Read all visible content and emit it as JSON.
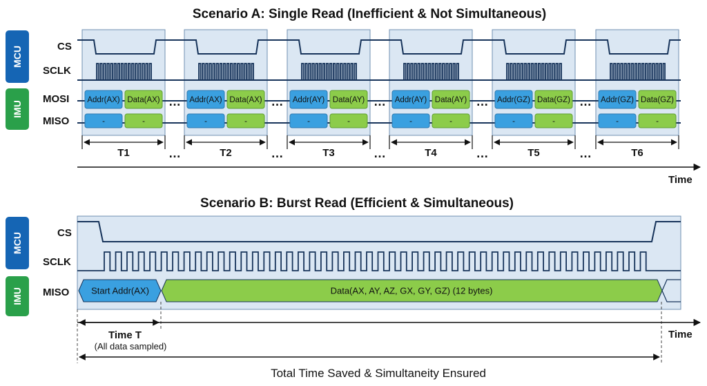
{
  "scenario_a": {
    "title": "Scenario A: Single Read (Inefficient & Not Simultaneous)",
    "side_labels": {
      "mcu": "MCU",
      "imu": "IMU"
    },
    "signals": {
      "cs": "CS",
      "sclk": "SCLK",
      "mosi": "MOSI",
      "miso": "MISO"
    },
    "transactions": [
      {
        "period": "T1",
        "addr": "Addr(AX)",
        "data": "Data(AX)",
        "miso_addr": "-",
        "miso_data": "-"
      },
      {
        "period": "T2",
        "addr": "Addr(AX)",
        "data": "Data(AX)",
        "miso_addr": "-",
        "miso_data": "-"
      },
      {
        "period": "T3",
        "addr": "Addr(AY)",
        "data": "Data(AY)",
        "miso_addr": "-",
        "miso_data": "-"
      },
      {
        "period": "T4",
        "addr": "Addr(AY)",
        "data": "Data(AY)",
        "miso_addr": "-",
        "miso_data": "-"
      },
      {
        "period": "T5",
        "addr": "Addr(GZ)",
        "data": "Data(GZ)",
        "miso_addr": "-",
        "miso_data": "-"
      },
      {
        "period": "T6",
        "addr": "Addr(GZ)",
        "data": "Data(GZ)",
        "miso_addr": "-",
        "miso_data": "-"
      }
    ],
    "ellipsis": "…",
    "time_label": "Time"
  },
  "scenario_b": {
    "title": "Scenario B: Burst Read (Efficient & Simultaneous)",
    "side_labels": {
      "mcu": "MCU",
      "imu": "IMU"
    },
    "signals": {
      "cs": "CS",
      "sclk": "SCLK",
      "miso": "MISO"
    },
    "start_addr": "Start Addr(AX)",
    "data_block": "Data(AX, AY, AZ, GX, GY, GZ) (12 bytes)",
    "time_t": "Time T",
    "time_t_note": "(All data sampled)",
    "time_label": "Time",
    "total_label": "Total Time Saved & Simultaneity Ensured"
  },
  "colors": {
    "side_blue": "#1565b4",
    "side_green": "#2aa04a",
    "panel_fill": "#dbe7f3",
    "panel_stroke": "#6f8fb0",
    "block_blue": "#3aa0e0",
    "block_green": "#8ccc4a",
    "wave": "#16335a"
  }
}
